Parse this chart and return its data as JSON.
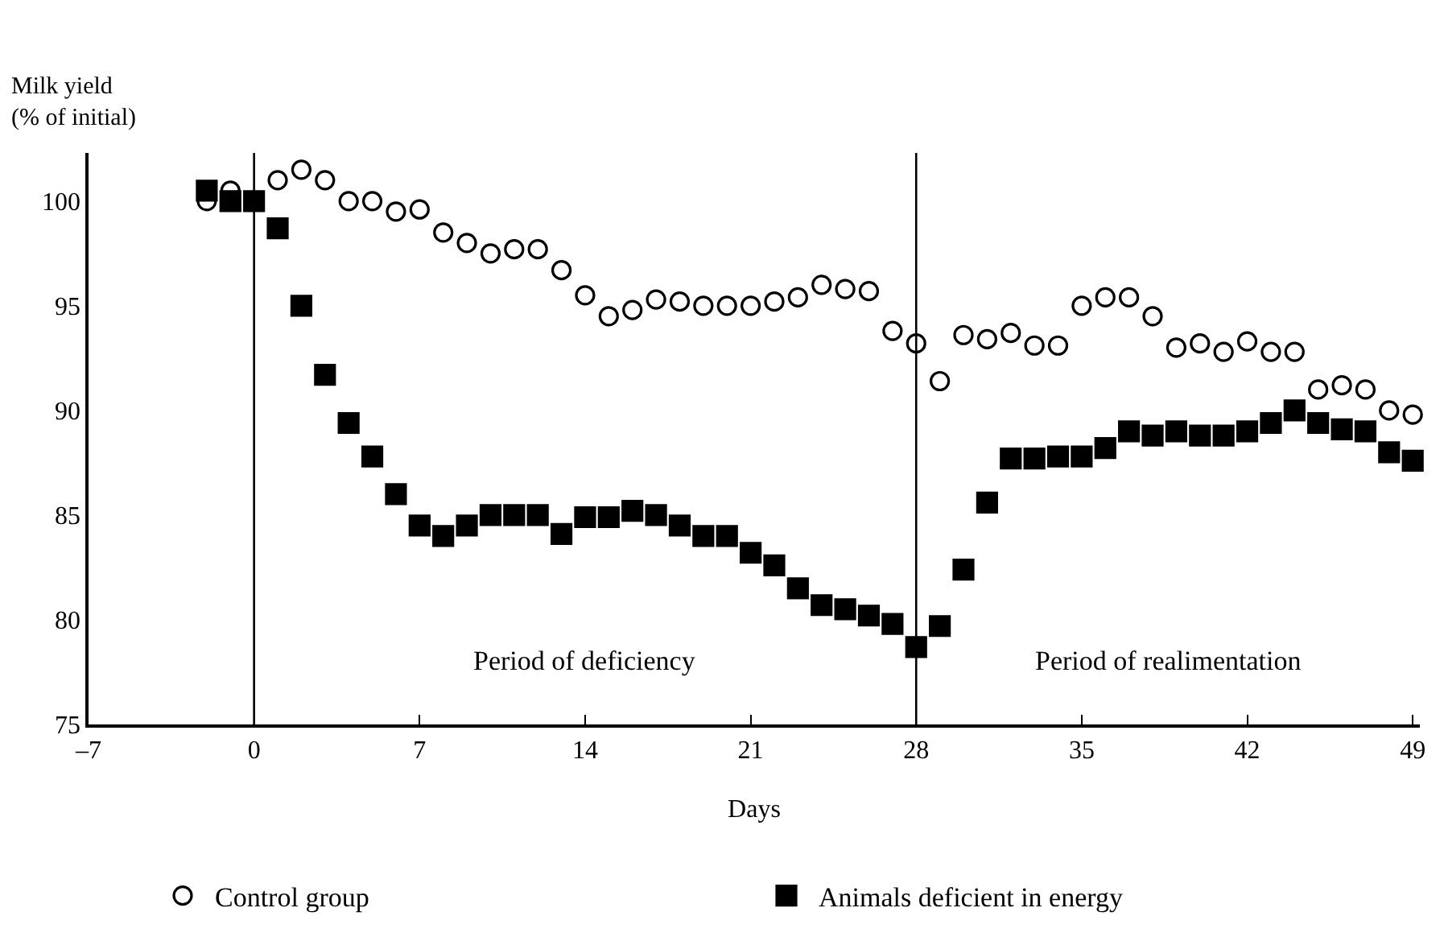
{
  "chart_data": {
    "type": "scatter",
    "xlabel": "Days",
    "ylabel": "Milk yield\n(% of initial)",
    "x": [
      -2,
      -1,
      0,
      1,
      2,
      3,
      4,
      5,
      6,
      7,
      8,
      9,
      10,
      11,
      12,
      13,
      14,
      15,
      16,
      17,
      18,
      19,
      20,
      21,
      22,
      23,
      24,
      25,
      26,
      27,
      28,
      29,
      30,
      31,
      32,
      33,
      34,
      35,
      36,
      37,
      38,
      39,
      40,
      41,
      42,
      43,
      44,
      45,
      46,
      47,
      48,
      49
    ],
    "series": [
      {
        "name": "Control group",
        "color": "#000000",
        "marker": "circle-open",
        "values": [
          100,
          100.5,
          null,
          101,
          101.5,
          101,
          100,
          100,
          99.5,
          99.6,
          98.5,
          98,
          97.5,
          97.7,
          97.7,
          96.7,
          95.5,
          94.5,
          94.8,
          95.3,
          95.2,
          95,
          95,
          95,
          95.2,
          95.4,
          96,
          95.8,
          95.7,
          93.8,
          93.2,
          91.4,
          93.6,
          93.4,
          93.7,
          93.1,
          93.1,
          95,
          95.4,
          95.4,
          94.5,
          93,
          93.2,
          92.8,
          93.3,
          92.8,
          92.8,
          91,
          91.2,
          91,
          90,
          89.8
        ]
      },
      {
        "name": "Animals deficient in energy",
        "color": "#000000",
        "marker": "square",
        "values": [
          100.5,
          100,
          100,
          98.7,
          95,
          91.7,
          89.4,
          87.8,
          86,
          84.5,
          84,
          84.5,
          85,
          85,
          85,
          84.1,
          84.9,
          84.9,
          85.2,
          85,
          84.5,
          84,
          84,
          83.2,
          82.6,
          81.5,
          80.7,
          80.5,
          80.2,
          79.8,
          78.7,
          79.7,
          82.4,
          85.6,
          87.7,
          87.7,
          87.8,
          87.8,
          88.2,
          89,
          88.8,
          89,
          88.8,
          88.8,
          89,
          89.4,
          90,
          89.4,
          89.1,
          89,
          88,
          87.6
        ]
      }
    ],
    "xlim": [
      -7,
      49.3
    ],
    "xticks": [
      {
        "value": -7,
        "label": "–7"
      },
      0,
      7,
      14,
      21,
      28,
      35,
      42,
      49
    ],
    "ylim": [
      75,
      102.3
    ],
    "yticks": [
      75,
      80,
      85,
      90,
      95,
      100
    ],
    "ref_lines": [
      {
        "axis": "x",
        "value": 0,
        "color": "#000000"
      },
      {
        "axis": "x",
        "value": 28,
        "color": "#000000"
      }
    ],
    "annotations": [
      "Period of deficiency",
      "Period of realimentation"
    ],
    "legend": "bottom"
  }
}
